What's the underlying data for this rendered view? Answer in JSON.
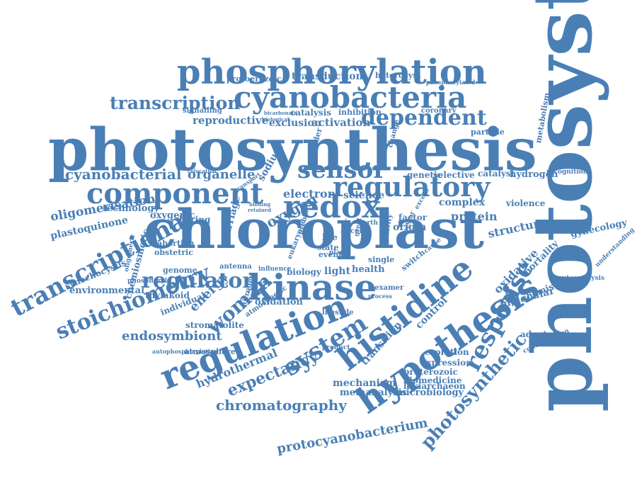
{
  "color": "#4a7fb5",
  "words": [
    "photosystem",
    "photosynthesis",
    "chloroplast",
    "phosphorylation",
    "cyanobacteria",
    "kinase",
    "regulation",
    "histidine",
    "hypothesis",
    "component",
    "sensor",
    "regulatory",
    "redox",
    "transcriptional",
    "transcription",
    "dependent",
    "cyanobacterial",
    "organelle",
    "response",
    "photosynthetic",
    "stoichiometry",
    "regulator",
    "system",
    "woman",
    "expectancy",
    "chromatography",
    "protocyanobacterium",
    "endosymbiont",
    "hydrothermal",
    "oxygen",
    "electron",
    "science",
    "protein",
    "structure",
    "complex",
    "oligomerisation",
    "plastoquinone",
    "technology",
    "oxygenic",
    "environmental",
    "synechocystis",
    "chemiosmotic",
    "thylakoid",
    "mechanism",
    "metaanalysis",
    "microbiology",
    "biomedicine",
    "lokiarchaeon",
    "proterozoic",
    "expression",
    "evolution",
    "adaptation",
    "molecular",
    "chemistry",
    "mortality",
    "oxidative",
    "hydrogen",
    "selective",
    "genetic",
    "catalyst",
    "recognition",
    "violence",
    "gynecology",
    "particle",
    "metabolism",
    "coronary",
    "heterocyst",
    "phosphorylated",
    "transduction",
    "protoerozoic",
    "signalling",
    "reproductive",
    "catalysis",
    "inhibition",
    "activation",
    "exclusion",
    "change",
    "gender",
    "sodium",
    "boring",
    "marriage",
    "abortion",
    "obstetric",
    "antenna",
    "genome",
    "atmosphere",
    "atmospheric",
    "energy",
    "individual",
    "nitrogen",
    "oxidation",
    "stromatolite",
    "biology",
    "light",
    "health",
    "origin",
    "factor",
    "control",
    "transition",
    "lifestyle",
    "single",
    "switch",
    "state",
    "life",
    "event",
    "autocatalysis",
    "concentration",
    "autophosphorylation",
    "product",
    "bicarbonate",
    "colocation",
    "biological",
    "prebiotic",
    "influence",
    "oligomeric",
    "phosphoryl",
    "eukaryotic",
    "hexamer",
    "earth",
    "transport",
    "binding",
    "retained",
    "cell",
    "year",
    "plant",
    "excess",
    "great",
    "activity",
    "ancestor",
    "cause",
    "process",
    "understanding"
  ]
}
